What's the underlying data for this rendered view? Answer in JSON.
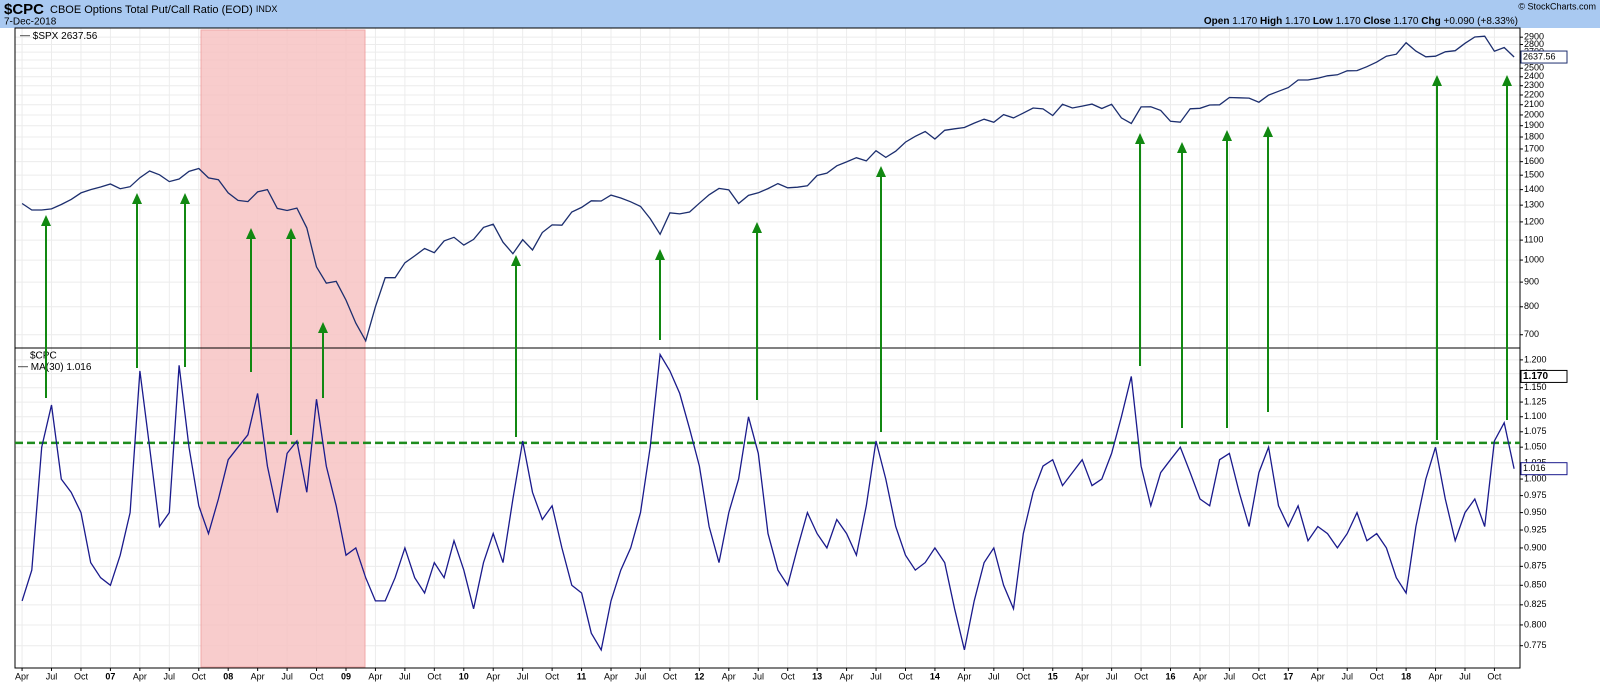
{
  "header": {
    "symbol": "$CPC",
    "name": "CBOE Options Total Put/Call Ratio (EOD)",
    "exchange": "INDX",
    "date": "7-Dec-2018",
    "copyright": "© StockCharts.com",
    "quote": [
      {
        "label": "Open",
        "value": "1.170"
      },
      {
        "label": "High",
        "value": "1.170"
      },
      {
        "label": "Low",
        "value": "1.170"
      },
      {
        "label": "Close",
        "value": "1.170"
      },
      {
        "label": "Chg",
        "value": "+0.090 (+8.33%)"
      }
    ]
  },
  "chart_data": [
    {
      "type": "line",
      "log_scale": true,
      "grid": true,
      "x": [
        2006.25,
        2006.333,
        2006.417,
        2006.5,
        2006.583,
        2006.667,
        2006.75,
        2006.833,
        2006.917,
        2007,
        2007.083,
        2007.167,
        2007.25,
        2007.333,
        2007.417,
        2007.5,
        2007.583,
        2007.667,
        2007.75,
        2007.833,
        2007.917,
        2008,
        2008.083,
        2008.167,
        2008.25,
        2008.333,
        2008.417,
        2008.5,
        2008.583,
        2008.667,
        2008.75,
        2008.833,
        2008.917,
        2009,
        2009.083,
        2009.167,
        2009.25,
        2009.333,
        2009.417,
        2009.5,
        2009.583,
        2009.667,
        2009.75,
        2009.833,
        2009.917,
        2010,
        2010.083,
        2010.167,
        2010.25,
        2010.333,
        2010.417,
        2010.5,
        2010.583,
        2010.667,
        2010.75,
        2010.833,
        2010.917,
        2011,
        2011.083,
        2011.167,
        2011.25,
        2011.333,
        2011.417,
        2011.5,
        2011.583,
        2011.667,
        2011.75,
        2011.833,
        2011.917,
        2012,
        2012.083,
        2012.167,
        2012.25,
        2012.333,
        2012.417,
        2012.5,
        2012.583,
        2012.667,
        2012.75,
        2012.833,
        2012.917,
        2013,
        2013.083,
        2013.167,
        2013.25,
        2013.333,
        2013.417,
        2013.5,
        2013.583,
        2013.667,
        2013.75,
        2013.833,
        2013.917,
        2014,
        2014.083,
        2014.167,
        2014.25,
        2014.333,
        2014.417,
        2014.5,
        2014.583,
        2014.667,
        2014.75,
        2014.833,
        2014.917,
        2015,
        2015.083,
        2015.167,
        2015.25,
        2015.333,
        2015.417,
        2015.5,
        2015.583,
        2015.667,
        2015.75,
        2015.833,
        2015.917,
        2016,
        2016.083,
        2016.167,
        2016.25,
        2016.333,
        2016.417,
        2016.5,
        2016.583,
        2016.667,
        2016.75,
        2016.833,
        2016.917,
        2017,
        2017.083,
        2017.167,
        2017.25,
        2017.333,
        2017.417,
        2017.5,
        2017.583,
        2017.667,
        2017.75,
        2017.833,
        2017.917,
        2018,
        2018.083,
        2018.167,
        2018.25,
        2018.333,
        2018.417,
        2018.5,
        2018.583,
        2018.667,
        2018.75,
        2018.833,
        2018.917
      ],
      "series": [
        {
          "name": "$SPX",
          "color": "#1c2e6e",
          "values": [
            1310,
            1270,
            1270,
            1277,
            1304,
            1336,
            1378,
            1400,
            1418,
            1438,
            1406,
            1420,
            1482,
            1530,
            1503,
            1455,
            1473,
            1527,
            1549,
            1481,
            1468,
            1378,
            1330,
            1322,
            1385,
            1400,
            1280,
            1267,
            1282,
            1166,
            968,
            896,
            903,
            826,
            740,
            680,
            800,
            919,
            919,
            987,
            1020,
            1057,
            1036,
            1096,
            1115,
            1074,
            1104,
            1169,
            1187,
            1089,
            1031,
            1102,
            1049,
            1141,
            1183,
            1181,
            1258,
            1286,
            1327,
            1326,
            1364,
            1345,
            1321,
            1292,
            1219,
            1131,
            1253,
            1247,
            1258,
            1312,
            1366,
            1408,
            1398,
            1310,
            1362,
            1379,
            1407,
            1441,
            1412,
            1416,
            1426,
            1498,
            1515,
            1569,
            1598,
            1631,
            1606,
            1686,
            1633,
            1682,
            1757,
            1806,
            1848,
            1783,
            1859,
            1872,
            1884,
            1924,
            1960,
            1931,
            2003,
            1972,
            2018,
            2068,
            2059,
            1995,
            2105,
            2068,
            2086,
            2107,
            2063,
            2104,
            1972,
            1920,
            2079,
            2080,
            2044,
            1940,
            1932,
            2060,
            2065,
            2097,
            2099,
            2174,
            2171,
            2168,
            2126,
            2199,
            2239,
            2279,
            2364,
            2363,
            2384,
            2412,
            2423,
            2470,
            2472,
            2519,
            2575,
            2648,
            2674,
            2824,
            2714,
            2641,
            2648,
            2705,
            2718,
            2816,
            2902,
            2914,
            2712,
            2760,
            2637.56
          ]
        }
      ],
      "xlim": [
        2006.19,
        2018.95
      ],
      "ylim": [
        657,
        3030
      ],
      "yticks": [
        700,
        800,
        900,
        1000,
        1100,
        1200,
        1300,
        1400,
        1500,
        1600,
        1700,
        1800,
        1900,
        2000,
        2100,
        2200,
        2300,
        2400,
        2500,
        2600,
        2700,
        2800,
        2900
      ]
    },
    {
      "type": "line",
      "log_scale": true,
      "grid": true,
      "title": "$CPC",
      "x": [
        2006.25,
        2006.333,
        2006.417,
        2006.5,
        2006.583,
        2006.667,
        2006.75,
        2006.833,
        2006.917,
        2007,
        2007.083,
        2007.167,
        2007.25,
        2007.333,
        2007.417,
        2007.5,
        2007.583,
        2007.667,
        2007.75,
        2007.833,
        2007.917,
        2008,
        2008.083,
        2008.167,
        2008.25,
        2008.333,
        2008.417,
        2008.5,
        2008.583,
        2008.667,
        2008.75,
        2008.833,
        2008.917,
        2009,
        2009.083,
        2009.167,
        2009.25,
        2009.333,
        2009.417,
        2009.5,
        2009.583,
        2009.667,
        2009.75,
        2009.833,
        2009.917,
        2010,
        2010.083,
        2010.167,
        2010.25,
        2010.333,
        2010.417,
        2010.5,
        2010.583,
        2010.667,
        2010.75,
        2010.833,
        2010.917,
        2011,
        2011.083,
        2011.167,
        2011.25,
        2011.333,
        2011.417,
        2011.5,
        2011.583,
        2011.667,
        2011.75,
        2011.833,
        2011.917,
        2012,
        2012.083,
        2012.167,
        2012.25,
        2012.333,
        2012.417,
        2012.5,
        2012.583,
        2012.667,
        2012.75,
        2012.833,
        2012.917,
        2013,
        2013.083,
        2013.167,
        2013.25,
        2013.333,
        2013.417,
        2013.5,
        2013.583,
        2013.667,
        2013.75,
        2013.833,
        2013.917,
        2014,
        2014.083,
        2014.167,
        2014.25,
        2014.333,
        2014.417,
        2014.5,
        2014.583,
        2014.667,
        2014.75,
        2014.833,
        2014.917,
        2015,
        2015.083,
        2015.167,
        2015.25,
        2015.333,
        2015.417,
        2015.5,
        2015.583,
        2015.667,
        2015.75,
        2015.833,
        2015.917,
        2016,
        2016.083,
        2016.167,
        2016.25,
        2016.333,
        2016.417,
        2016.5,
        2016.583,
        2016.667,
        2016.75,
        2016.833,
        2016.917,
        2017,
        2017.083,
        2017.167,
        2017.25,
        2017.333,
        2017.417,
        2017.5,
        2017.583,
        2017.667,
        2017.75,
        2017.833,
        2017.917,
        2018,
        2018.083,
        2018.167,
        2018.25,
        2018.333,
        2018.417,
        2018.5,
        2018.583,
        2018.667,
        2018.75,
        2018.833,
        2018.917
      ],
      "series": [
        {
          "name": "MA(30)",
          "color": "#1a1a8c",
          "values": [
            0.83,
            0.87,
            1.05,
            1.12,
            1.0,
            0.98,
            0.95,
            0.88,
            0.86,
            0.85,
            0.89,
            0.95,
            1.18,
            1.05,
            0.93,
            0.95,
            1.19,
            1.05,
            0.96,
            0.92,
            0.97,
            1.03,
            1.05,
            1.07,
            1.14,
            1.02,
            0.95,
            1.04,
            1.06,
            0.98,
            1.13,
            1.02,
            0.96,
            0.89,
            0.9,
            0.86,
            0.83,
            0.83,
            0.86,
            0.9,
            0.86,
            0.84,
            0.88,
            0.86,
            0.91,
            0.87,
            0.82,
            0.88,
            0.92,
            0.88,
            0.97,
            1.06,
            0.98,
            0.94,
            0.96,
            0.9,
            0.85,
            0.84,
            0.79,
            0.77,
            0.83,
            0.87,
            0.9,
            0.95,
            1.05,
            1.21,
            1.18,
            1.14,
            1.08,
            1.02,
            0.93,
            0.88,
            0.95,
            1.0,
            1.1,
            1.04,
            0.92,
            0.87,
            0.85,
            0.9,
            0.95,
            0.92,
            0.9,
            0.94,
            0.92,
            0.89,
            0.96,
            1.06,
            1.0,
            0.93,
            0.89,
            0.87,
            0.88,
            0.9,
            0.88,
            0.82,
            0.77,
            0.83,
            0.88,
            0.9,
            0.85,
            0.82,
            0.92,
            0.98,
            1.02,
            1.03,
            0.99,
            1.01,
            1.03,
            0.99,
            1.0,
            1.04,
            1.1,
            1.17,
            1.02,
            0.96,
            1.01,
            1.03,
            1.05,
            1.01,
            0.97,
            0.96,
            1.03,
            1.04,
            0.98,
            0.93,
            1.01,
            1.05,
            0.96,
            0.93,
            0.96,
            0.91,
            0.93,
            0.92,
            0.9,
            0.92,
            0.95,
            0.91,
            0.92,
            0.9,
            0.86,
            0.84,
            0.93,
            1.0,
            1.05,
            0.97,
            0.91,
            0.95,
            0.97,
            0.93,
            1.06,
            1.09,
            1.016
          ]
        }
      ],
      "reference_line": {
        "value": 1.057,
        "color": "#1e8c1e"
      },
      "last_close": {
        "value": 1.17,
        "label": "1.170"
      },
      "xlim": [
        2006.19,
        2018.95
      ],
      "ylim": [
        0.749,
        1.222
      ],
      "yticks": [
        0.775,
        {
          "value": 0.8,
          "label": "0.800"
        },
        0.825,
        {
          "value": 0.85,
          "label": "0.850"
        },
        0.875,
        {
          "value": 0.9,
          "label": "0.900"
        },
        0.925,
        {
          "value": 0.95,
          "label": "0.950"
        },
        0.975,
        {
          "value": 1,
          "label": "1.000"
        },
        1.025,
        {
          "value": 1.05,
          "label": "1.050"
        },
        1.075,
        {
          "value": 1.1,
          "label": "1.100"
        },
        1.125,
        {
          "value": 1.15,
          "label": "1.150"
        },
        1.175,
        {
          "value": 1.2,
          "label": "1.200"
        }
      ],
      "xticks": [
        {
          "value": 2006.25,
          "label": "Apr"
        },
        {
          "value": 2006.5,
          "label": "Jul"
        },
        {
          "value": 2006.75,
          "label": "Oct"
        },
        {
          "value": 2007,
          "label": "07"
        },
        {
          "value": 2007.25,
          "label": "Apr"
        },
        {
          "value": 2007.5,
          "label": "Jul"
        },
        {
          "value": 2007.75,
          "label": "Oct"
        },
        {
          "value": 2008,
          "label": "08"
        },
        {
          "value": 2008.25,
          "label": "Apr"
        },
        {
          "value": 2008.5,
          "label": "Jul"
        },
        {
          "value": 2008.75,
          "label": "Oct"
        },
        {
          "value": 2009,
          "label": "09"
        },
        {
          "value": 2009.25,
          "label": "Apr"
        },
        {
          "value": 2009.5,
          "label": "Jul"
        },
        {
          "value": 2009.75,
          "label": "Oct"
        },
        {
          "value": 2010,
          "label": "10"
        },
        {
          "value": 2010.25,
          "label": "Apr"
        },
        {
          "value": 2010.5,
          "label": "Jul"
        },
        {
          "value": 2010.75,
          "label": "Oct"
        },
        {
          "value": 2011,
          "label": "11"
        },
        {
          "value": 2011.25,
          "label": "Apr"
        },
        {
          "value": 2011.5,
          "label": "Jul"
        },
        {
          "value": 2011.75,
          "label": "Oct"
        },
        {
          "value": 2012,
          "label": "12"
        },
        {
          "value": 2012.25,
          "label": "Apr"
        },
        {
          "value": 2012.5,
          "label": "Jul"
        },
        {
          "value": 2012.75,
          "label": "Oct"
        },
        {
          "value": 2013,
          "label": "13"
        },
        {
          "value": 2013.25,
          "label": "Apr"
        },
        {
          "value": 2013.5,
          "label": "Jul"
        },
        {
          "value": 2013.75,
          "label": "Oct"
        },
        {
          "value": 2014,
          "label": "14"
        },
        {
          "value": 2014.25,
          "label": "Apr"
        },
        {
          "value": 2014.5,
          "label": "Jul"
        },
        {
          "value": 2014.75,
          "label": "Oct"
        },
        {
          "value": 2015,
          "label": "15"
        },
        {
          "value": 2015.25,
          "label": "Apr"
        },
        {
          "value": 2015.5,
          "label": "Jul"
        },
        {
          "value": 2015.75,
          "label": "Oct"
        },
        {
          "value": 2016,
          "label": "16"
        },
        {
          "value": 2016.25,
          "label": "Apr"
        },
        {
          "value": 2016.5,
          "label": "Jul"
        },
        {
          "value": 2016.75,
          "label": "Oct"
        },
        {
          "value": 2017,
          "label": "17"
        },
        {
          "value": 2017.25,
          "label": "Apr"
        },
        {
          "value": 2017.5,
          "label": "Jul"
        },
        {
          "value": 2017.75,
          "label": "Oct"
        },
        {
          "value": 2018,
          "label": "18"
        },
        {
          "value": 2018.25,
          "label": "Apr"
        },
        {
          "value": 2018.5,
          "label": "Jul"
        },
        {
          "value": 2018.75,
          "label": "Oct"
        }
      ]
    }
  ]
}
